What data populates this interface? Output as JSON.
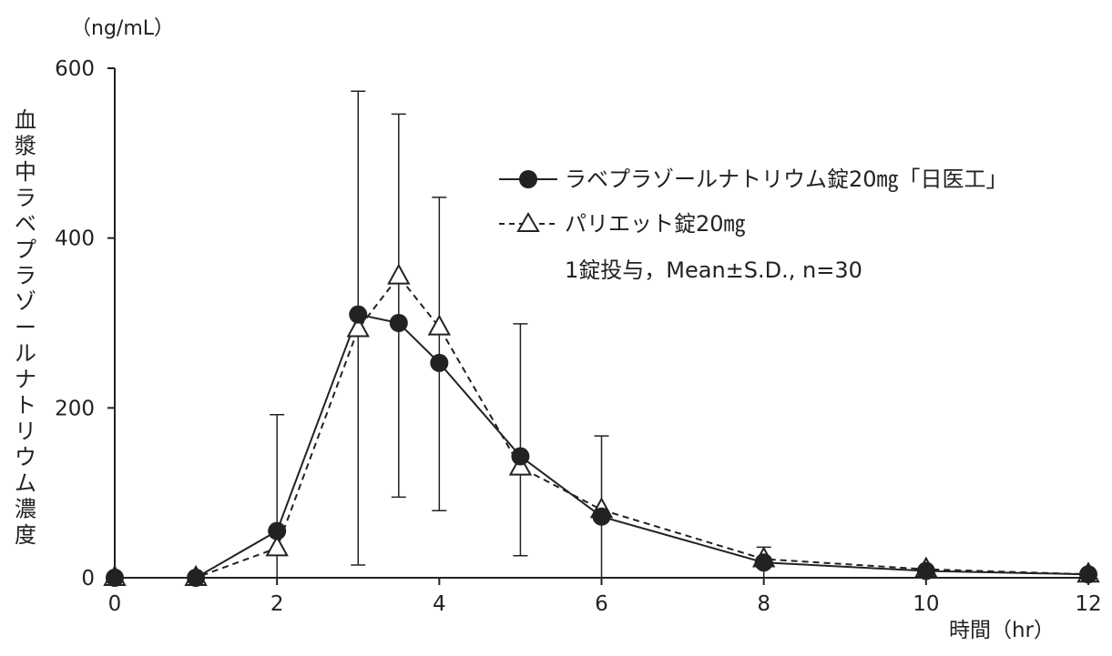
{
  "chart_data": {
    "type": "line",
    "title": "",
    "xlabel": "時間（hr）",
    "ylabel": "血漿中ラベプラゾールナトリウム濃度",
    "yunit": "（ng/mL）",
    "xlim": [
      0,
      12
    ],
    "ylim": [
      0,
      600
    ],
    "xticks": [
      0,
      2,
      4,
      6,
      8,
      10,
      12
    ],
    "yticks": [
      0,
      200,
      400,
      600
    ],
    "grid": false,
    "legend_position": "top-right",
    "note": "1錠投与，Mean±S.D., n=30",
    "x": [
      0,
      1,
      2,
      3,
      3.5,
      4,
      5,
      6,
      8,
      10,
      12
    ],
    "series": [
      {
        "name": "ラベプラゾールナトリウム錠20㎎「日医工」",
        "marker": "filled-circle",
        "line": "solid",
        "color": "#222222",
        "values": [
          0,
          0,
          55,
          310,
          300,
          253,
          143,
          72,
          18,
          8,
          4
        ],
        "error_upper": [
          0,
          0,
          192,
          573,
          300,
          448,
          299,
          167,
          36,
          12,
          6
        ],
        "error_lower": [
          0,
          0,
          0,
          15,
          300,
          79,
          26,
          0,
          0,
          4,
          2
        ]
      },
      {
        "name": "パリエット錠20㎎",
        "marker": "open-triangle",
        "line": "dashed",
        "color": "#222222",
        "values": [
          0,
          0,
          35,
          293,
          355,
          295,
          130,
          80,
          22,
          10,
          4
        ],
        "error_upper": [
          0,
          0,
          35,
          293,
          546,
          295,
          130,
          80,
          22,
          10,
          4
        ],
        "error_lower": [
          0,
          0,
          35,
          293,
          95,
          295,
          130,
          80,
          22,
          10,
          4
        ]
      }
    ]
  }
}
